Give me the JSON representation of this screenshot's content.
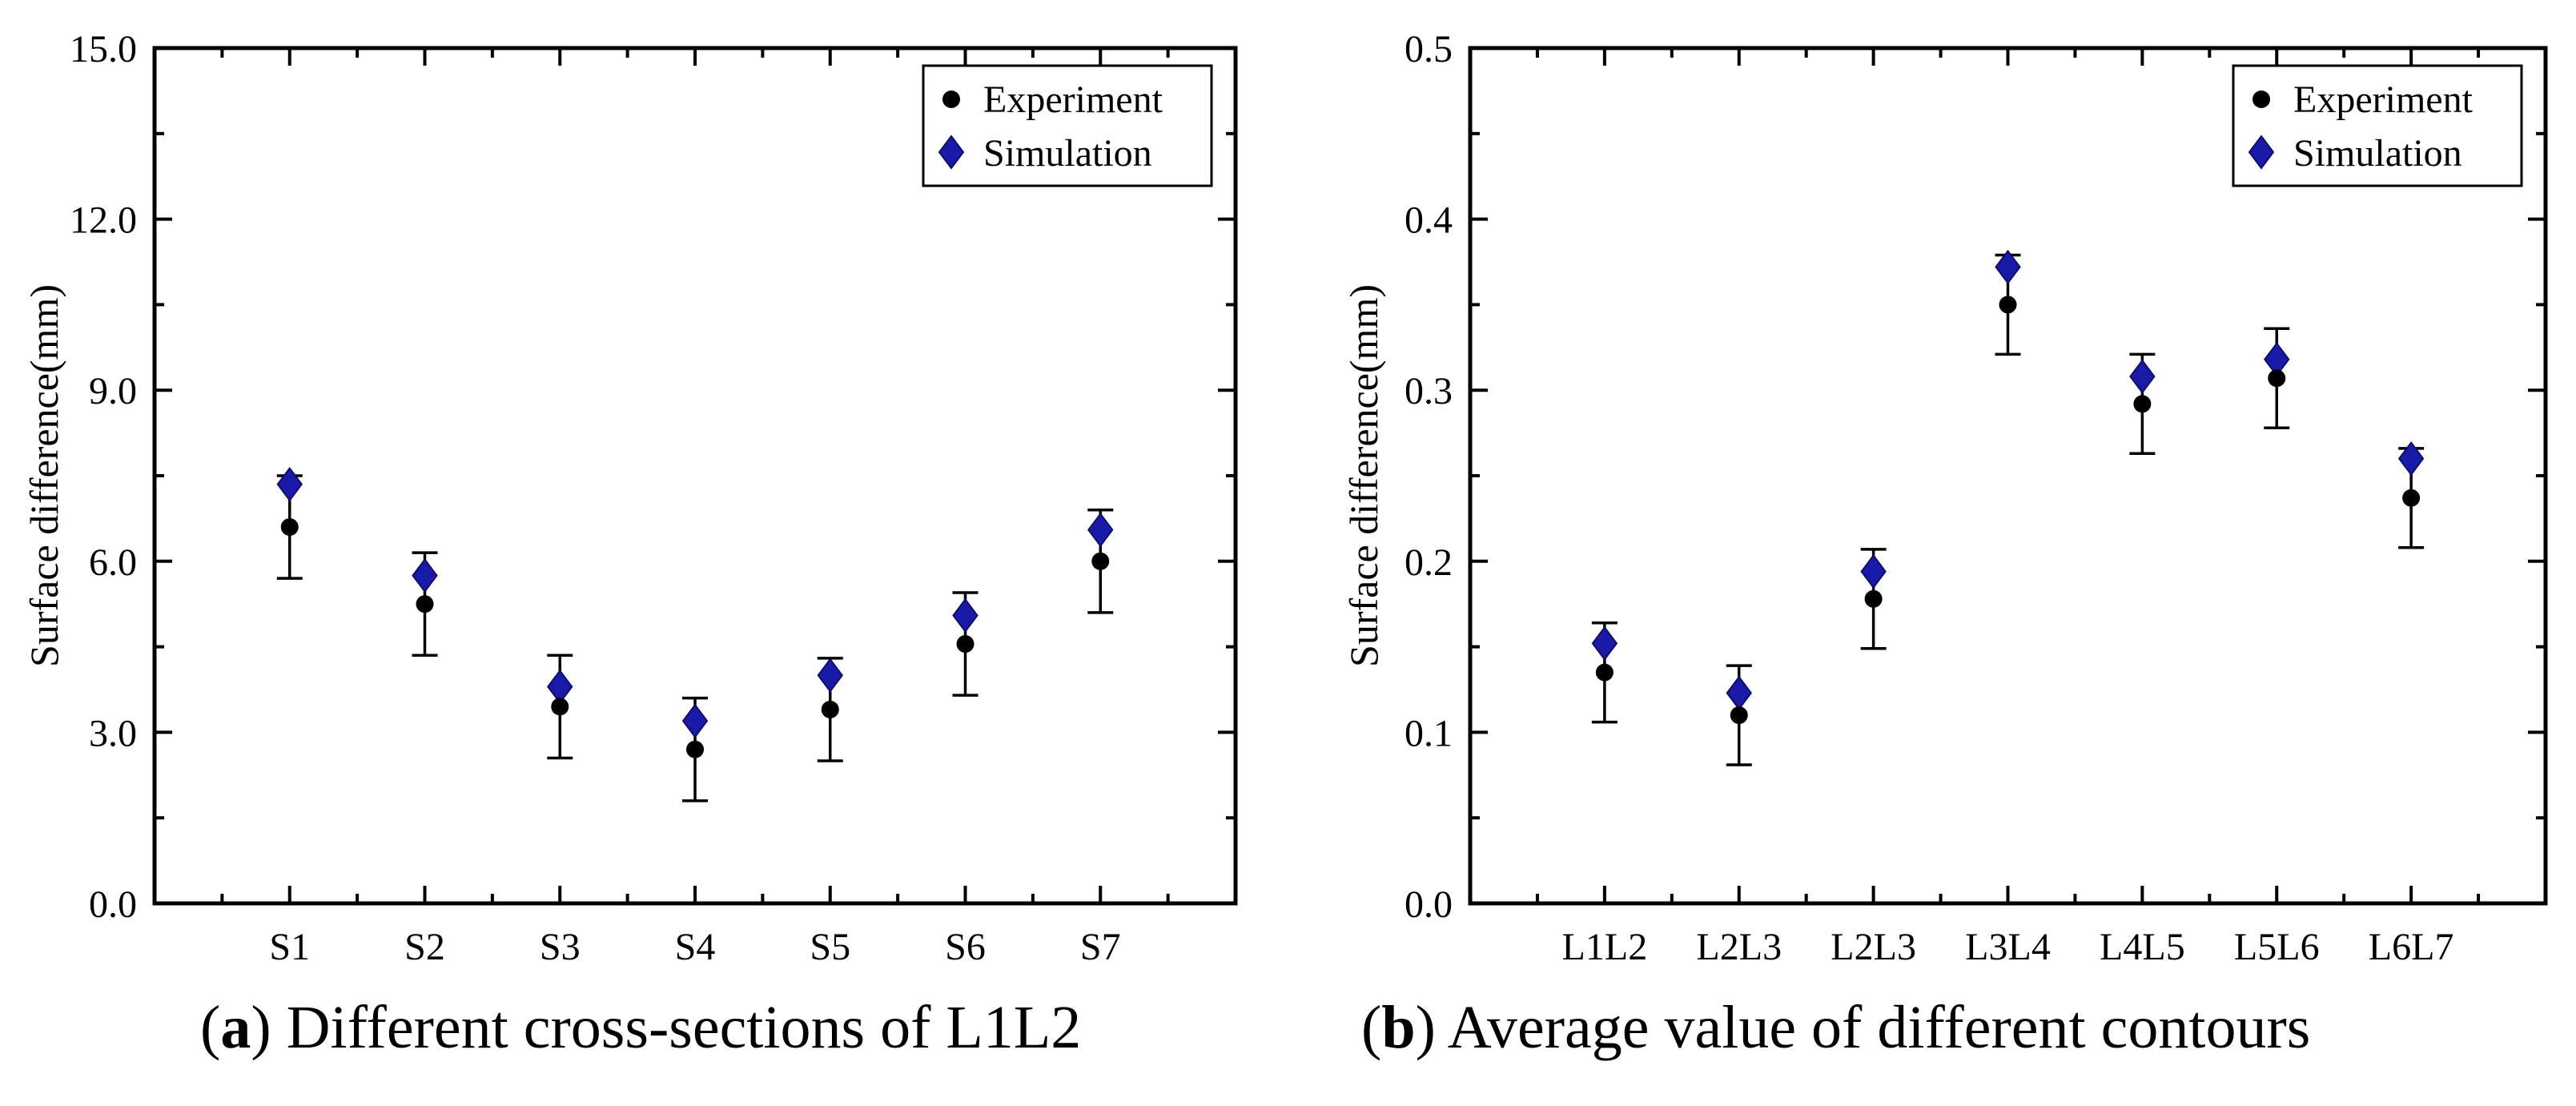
{
  "chart_data": [
    {
      "type": "scatter",
      "categories": [
        "S1",
        "S2",
        "S3",
        "S4",
        "S5",
        "S6",
        "S7"
      ],
      "ylabel": "Surface difference(mm)",
      "xlabel": "",
      "ylim": [
        0,
        15
      ],
      "yticks": [
        "0.0",
        "3.0",
        "6.0",
        "9.0",
        "12.0",
        "15.0"
      ],
      "legend_position": "top-right",
      "series": [
        {
          "name": "Experiment",
          "marker": "circle",
          "color": "#000000",
          "values": [
            6.6,
            5.25,
            3.45,
            2.7,
            3.4,
            4.55,
            6.0
          ],
          "error": [
            0.9,
            0.9,
            0.9,
            0.9,
            0.9,
            0.9,
            0.9
          ]
        },
        {
          "name": "Simulation",
          "marker": "diamond",
          "color": "#1a1aa8",
          "values": [
            7.35,
            5.75,
            3.8,
            3.2,
            4.0,
            5.05,
            6.55
          ]
        }
      ],
      "caption_letter": "a",
      "caption_text": "Different cross-sections of L1L2"
    },
    {
      "type": "scatter",
      "categories": [
        "L1L2",
        "L2L3",
        "L2L3",
        "L3L4",
        "L4L5",
        "L5L6",
        "L6L7"
      ],
      "ylabel": "Surface difference(mm)",
      "xlabel": "",
      "ylim": [
        0,
        0.5
      ],
      "yticks": [
        "0.0",
        "0.1",
        "0.2",
        "0.3",
        "0.4",
        "0.5"
      ],
      "legend_position": "top-right",
      "series": [
        {
          "name": "Experiment",
          "marker": "circle",
          "color": "#000000",
          "values": [
            0.135,
            0.11,
            0.178,
            0.35,
            0.292,
            0.307,
            0.237
          ],
          "error": [
            0.029,
            0.029,
            0.029,
            0.029,
            0.029,
            0.029,
            0.029
          ]
        },
        {
          "name": "Simulation",
          "marker": "diamond",
          "color": "#1a1aa8",
          "values": [
            0.152,
            0.123,
            0.194,
            0.372,
            0.308,
            0.318,
            0.26
          ]
        }
      ],
      "caption_letter": "b",
      "caption_text": "Average value of different contours"
    }
  ]
}
